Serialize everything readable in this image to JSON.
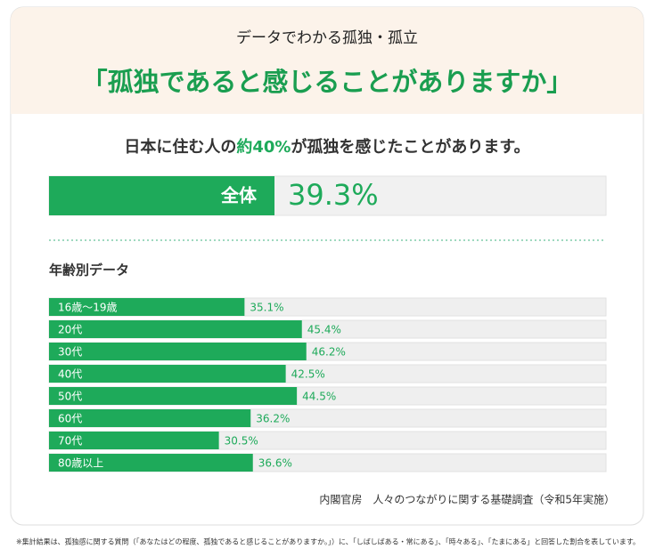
{
  "chart_data": {
    "type": "bar",
    "orientation": "horizontal",
    "kicker": "データでわかる孤独・孤立",
    "title": "「孤独であると感じることがありますか」",
    "subtitle": [
      "日本に住む人の",
      "約40%",
      "が孤独を感じたことがあります。"
    ],
    "overall": {
      "label": "全体",
      "value": 39.3,
      "value_label": "39.3%"
    },
    "section_title": "年齢別データ",
    "categories": [
      "16歳〜19歳",
      "20代",
      "30代",
      "40代",
      "50代",
      "60代",
      "70代",
      "80歳以上"
    ],
    "values": [
      35.1,
      45.4,
      46.2,
      42.5,
      44.5,
      36.2,
      30.5,
      36.6
    ],
    "value_labels": [
      "35.1%",
      "45.4%",
      "46.2%",
      "42.5%",
      "44.5%",
      "36.2%",
      "30.5%",
      "36.6%"
    ],
    "xlim": [
      0,
      100
    ],
    "color": "#1eaa5a",
    "source": "内閣官房　人々のつながりに関する基礎調査（令和5年実施）",
    "footnote": "※集計結果は、孤独感に関する質問（「あなたはどの程度、孤独であると感じることがありますか。」）に、「しばしばある・常にある」、「時々ある」、「たまにある」と回答した割合を表しています。"
  }
}
